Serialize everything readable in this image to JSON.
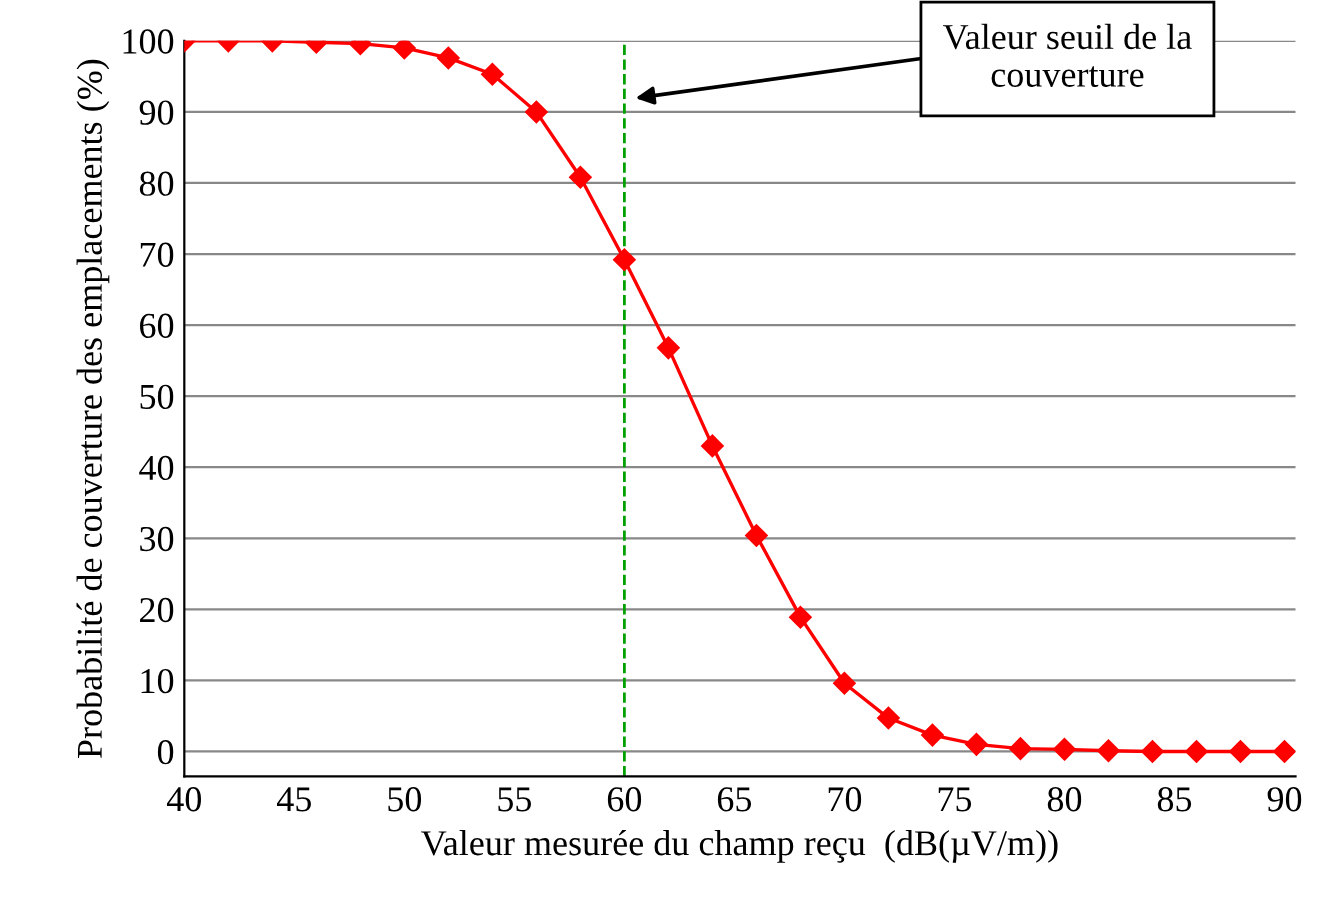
{
  "chart_data": {
    "type": "line",
    "xlabel": "Valeur mesurée du champ reçu  (dB(µV/m))",
    "ylabel": "Probabilité de couverture des emplacements (%)",
    "x": [
      40,
      42,
      44,
      46,
      48,
      50,
      52,
      54,
      56,
      58,
      60,
      62,
      64,
      66,
      68,
      70,
      72,
      74,
      76,
      78,
      80,
      82,
      84,
      86,
      88,
      90
    ],
    "series": [
      {
        "color": "#ff0000",
        "values": [
          100,
          100,
          100,
          99.8,
          99.6,
          99,
          97.6,
          95.3,
          90,
          80.8,
          69.2,
          56.8,
          43,
          30.4,
          18.9,
          9.6,
          4.7,
          2.3,
          1,
          0.4,
          0.3,
          0.1,
          0,
          0,
          0,
          0
        ]
      }
    ],
    "xlim": [
      40,
      90.5
    ],
    "xticks": [
      40,
      45,
      50,
      55,
      60,
      65,
      70,
      75,
      80,
      85,
      90
    ],
    "ylim": [
      -3.5,
      100
    ],
    "yticks": [
      0,
      10,
      20,
      30,
      40,
      50,
      60,
      70,
      80,
      90,
      100
    ],
    "grid": "y",
    "marker": "diamond",
    "line_style": "solid",
    "ref_lines": [
      {
        "axis": "x",
        "value": 60,
        "color": "#00a000",
        "line_style": "dashed"
      }
    ],
    "annotations": [
      "Valeur seuil de la\ncouverture"
    ]
  }
}
